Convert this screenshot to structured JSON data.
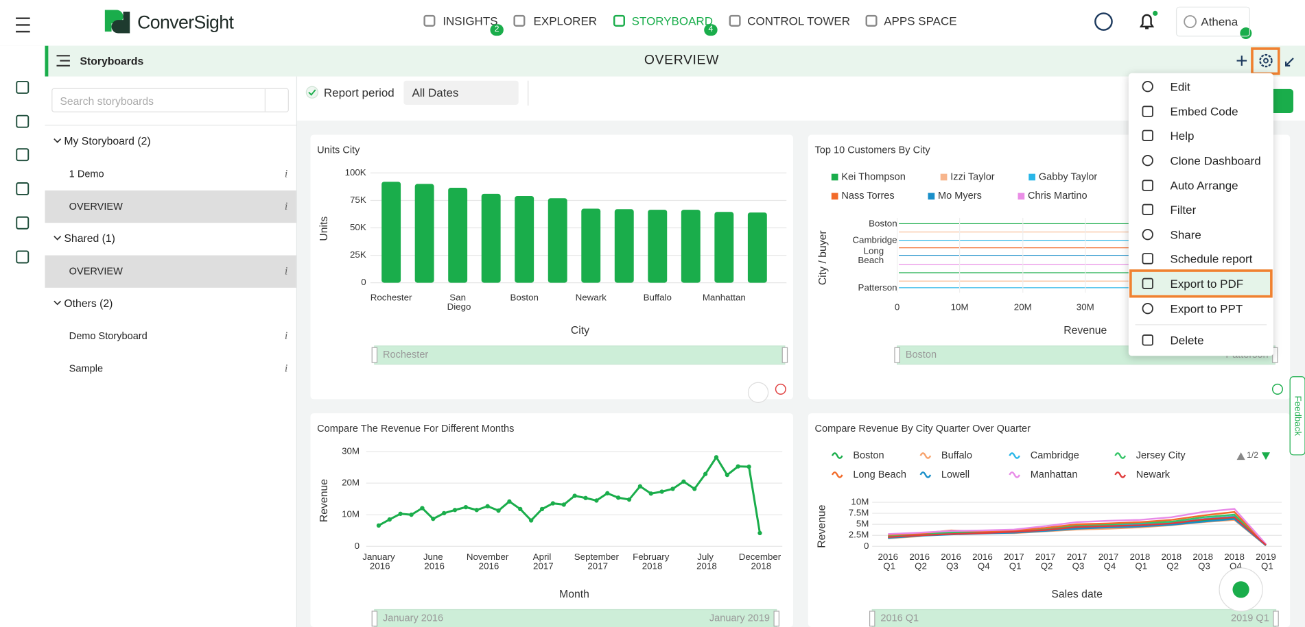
{
  "nav": {
    "logo": "ConverSight",
    "tabs": [
      {
        "label": "INSIGHTS",
        "badge": "2"
      },
      {
        "label": "EXPLORER"
      },
      {
        "label": "STORYBOARD",
        "badge": "4"
      },
      {
        "label": "CONTROL TOWER"
      },
      {
        "label": "APPS SPACE"
      }
    ],
    "user": "Athena"
  },
  "toolbar": {
    "section": "Storyboards",
    "title": "OVERVIEW"
  },
  "sidebar": {
    "search_placeholder": "Search storyboards",
    "info": "i",
    "groups": [
      {
        "label": "My Storyboard (2)",
        "items": [
          "1 Demo",
          "OVERVIEW"
        ]
      },
      {
        "label": "Shared (1)",
        "items": [
          "OVERVIEW"
        ]
      },
      {
        "label": "Others (2)",
        "items": [
          "Demo Storyboard",
          "Sample"
        ]
      }
    ]
  },
  "filter": {
    "label": "Report period",
    "value": "All Dates"
  },
  "menu": {
    "items": [
      "Edit",
      "Embed Code",
      "Help",
      "Clone Dashboard",
      "Auto Arrange",
      "Filter",
      "Share",
      "Schedule report",
      "Export to PDF",
      "Export to PPT",
      "Delete"
    ],
    "highlighted": "Export to PDF"
  },
  "feedback": "Feedback",
  "widgets": [
    {
      "type": "bar",
      "title": "Units City",
      "x_label": "City",
      "y_label": "Units",
      "color": "#1aad4b",
      "categories": [
        "Rochester",
        null,
        "San Diego",
        null,
        "Boston",
        null,
        "Newark",
        null,
        "Buffalo",
        null,
        "Manhattan",
        null
      ],
      "values": [
        92000,
        90000,
        86500,
        81000,
        79000,
        77000,
        67500,
        67000,
        66500,
        66500,
        64500,
        64000
      ],
      "ylim": [
        0,
        100000
      ],
      "yticks": [
        0,
        {
          "value": 25000,
          "label": "25K"
        },
        {
          "value": 50000,
          "label": "50K"
        },
        {
          "value": 75000,
          "label": "75K"
        },
        {
          "value": 100000,
          "label": "100K"
        }
      ],
      "slider": [
        "Rochester"
      ]
    },
    {
      "type": "hline",
      "title": "Top 10 Customers By City",
      "x_label": "Revenue",
      "y_label": "City / buyer",
      "categories": [
        "Boston",
        "Cambridge",
        "Long Beach",
        "Patterson"
      ],
      "xticks": [
        "0",
        "10M",
        "20M",
        "30M"
      ],
      "series": [
        {
          "name": "Kei Thompson",
          "color": "#1aad4b"
        },
        {
          "name": "Izzi Taylor",
          "color": "#f7b58c"
        },
        {
          "name": "Gabby Taylor",
          "color": "#29b6e8"
        },
        {
          "name": "Nass Torres",
          "color": "#f26b2a"
        },
        {
          "name": "Mo Myers",
          "color": "#1a8fc9"
        },
        {
          "name": "Chris Martino",
          "color": "#ea8ee6"
        }
      ],
      "slider": [
        "Boston",
        "Patterson"
      ]
    },
    {
      "type": "line",
      "title": "Compare The Revenue For Different Months",
      "x_label": "Month",
      "y_label": "Revenue",
      "color": "#1aad4b",
      "categories": [
        "January 2016",
        null,
        null,
        null,
        null,
        "June 2016",
        null,
        null,
        null,
        null,
        "November 2016",
        null,
        null,
        null,
        null,
        "April 2017",
        null,
        null,
        null,
        null,
        "September 2017",
        null,
        null,
        null,
        null,
        "February 2018",
        null,
        null,
        null,
        null,
        "July 2018",
        null,
        null,
        null,
        null,
        "December 2018"
      ],
      "values": [
        6600000,
        8500000,
        10300000,
        10000000,
        12100000,
        8700000,
        10500000,
        11500000,
        12400000,
        11500000,
        12700000,
        11300000,
        14200000,
        11800000,
        8200000,
        11800000,
        13600000,
        13200000,
        16000000,
        15300000,
        14500000,
        16800000,
        15400000,
        14800000,
        19000000,
        16700000,
        17300000,
        18200000,
        20500000,
        18200000,
        22900000,
        28200000,
        22600000,
        25300000,
        25200000,
        4200000
      ],
      "ylim": [
        0,
        30000000
      ],
      "yticks": [
        0,
        {
          "value": 10000000,
          "label": "10M"
        },
        {
          "value": 20000000,
          "label": "20M"
        },
        {
          "value": 30000000,
          "label": "30M"
        }
      ],
      "slider": [
        "January 2016",
        "January 2019"
      ]
    },
    {
      "type": "multiline",
      "title": "Compare Revenue By City Quarter Over Quarter",
      "x_label": "Sales date",
      "y_label": "Revenue",
      "pager": "1/2",
      "categories": [
        "2016 Q1",
        "2016 Q2",
        "2016 Q3",
        "2016 Q4",
        "2017 Q1",
        "2017 Q2",
        "2017 Q3",
        "2017 Q4",
        "2018 Q1",
        "2018 Q2",
        "2018 Q3",
        "2018 Q4",
        "2019 Q1"
      ],
      "ylim": [
        0,
        10000000
      ],
      "yticks": [
        0,
        {
          "value": 2500000,
          "label": "2.5M"
        },
        {
          "value": 5000000,
          "label": "5M"
        },
        {
          "value": 7500000,
          "label": "7.5M"
        },
        {
          "value": 10000000,
          "label": "10M"
        }
      ],
      "series": [
        {
          "name": "Boston",
          "color": "#1aad4b",
          "values": [
            2200000,
            2600000,
            2900000,
            3000000,
            3200000,
            3600000,
            4200000,
            4400000,
            4600000,
            5000000,
            5800000,
            6400000,
            200000
          ]
        },
        {
          "name": "Buffalo",
          "color": "#f7a26b",
          "values": [
            1800000,
            2300000,
            3400000,
            3000000,
            3000000,
            3400000,
            3800000,
            4000000,
            4300000,
            4800000,
            5500000,
            6000000,
            200000
          ]
        },
        {
          "name": "Cambridge",
          "color": "#29b6e8",
          "values": [
            2000000,
            3000000,
            3000000,
            3300000,
            3500000,
            3800000,
            4600000,
            4900000,
            5000000,
            5300000,
            6200000,
            6800000,
            300000
          ]
        },
        {
          "name": "Jersey City",
          "color": "#33c466",
          "values": [
            2400000,
            2700000,
            3200000,
            3100000,
            3300000,
            3900000,
            4800000,
            5000000,
            5300000,
            5600000,
            6600000,
            7200000,
            300000
          ]
        },
        {
          "name": "Long Beach",
          "color": "#f26b2a",
          "values": [
            2600000,
            2900000,
            3600000,
            3400000,
            3600000,
            4200000,
            5000000,
            5200000,
            5500000,
            6000000,
            7000000,
            7800000,
            400000
          ]
        },
        {
          "name": "Lowell",
          "color": "#1a8fc9",
          "values": [
            1900000,
            2400000,
            2700000,
            2900000,
            3100000,
            3500000,
            4000000,
            4300000,
            4500000,
            4900000,
            5600000,
            6200000,
            200000
          ]
        },
        {
          "name": "Manhattan",
          "color": "#e88ae8",
          "values": [
            2800000,
            3100000,
            3500000,
            3600000,
            3800000,
            4600000,
            5500000,
            5800000,
            6000000,
            6600000,
            7800000,
            8500000,
            500000
          ]
        },
        {
          "name": "Newark",
          "color": "#e03c3c",
          "values": [
            2100000,
            2500000,
            2800000,
            3000000,
            3300000,
            3700000,
            4400000,
            4600000,
            4800000,
            5200000,
            6100000,
            6600000,
            300000
          ]
        }
      ],
      "slider": [
        "2016 Q1",
        "2019 Q1"
      ]
    }
  ]
}
